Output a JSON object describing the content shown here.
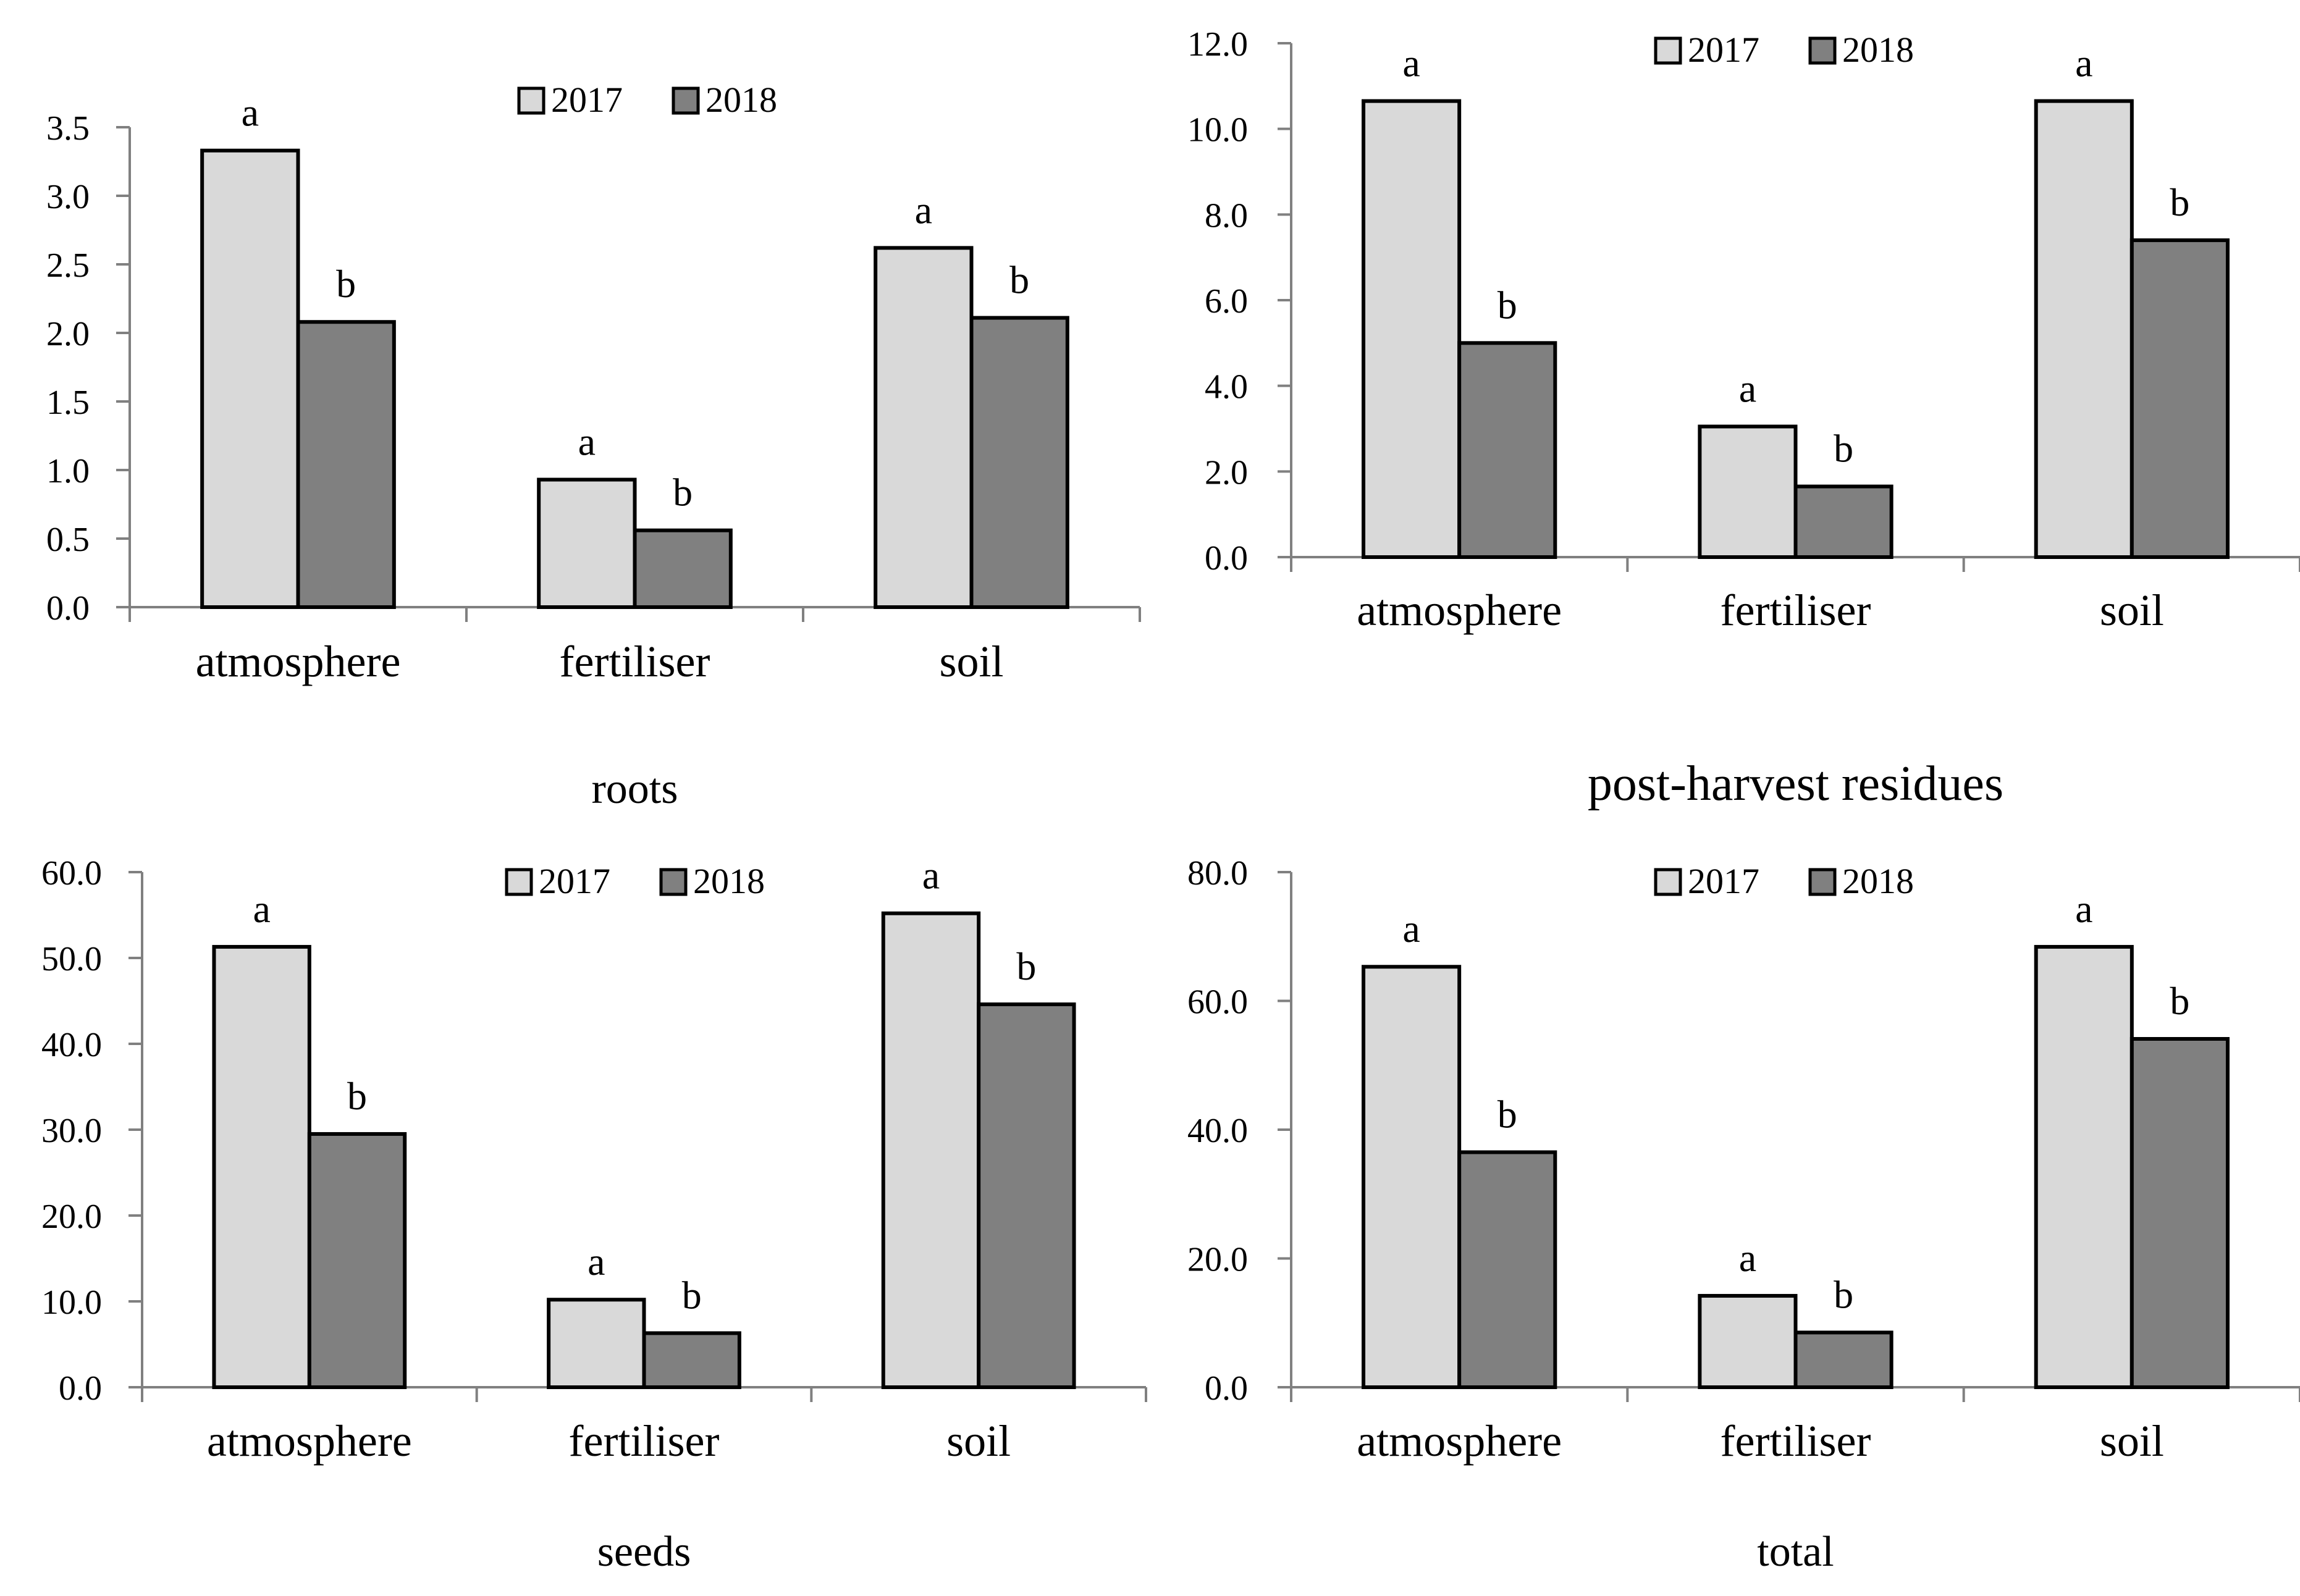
{
  "colors": {
    "y2017": "#d9d9d9",
    "y2018": "#808080",
    "stroke": "#000000",
    "axis": "#808080"
  },
  "chart_data": [
    {
      "type": "bar",
      "title": "roots",
      "categories": [
        "atmosphere",
        "fertiliser",
        "soil"
      ],
      "series": [
        {
          "name": "2017",
          "values": [
            3.33,
            0.93,
            2.62
          ],
          "letters": [
            "a",
            "a",
            "a"
          ]
        },
        {
          "name": "2018",
          "values": [
            2.08,
            0.56,
            2.11
          ],
          "letters": [
            "b",
            "b",
            "b"
          ]
        }
      ],
      "ylim": [
        0,
        3.5
      ],
      "ystep": 0.5,
      "ytick_labels": [
        "0.0",
        "0.5",
        "1.0",
        "1.5",
        "2.0",
        "2.5",
        "3.0",
        "3.5"
      ],
      "xlabel": "",
      "ylabel": "",
      "legend": "top-center",
      "grid": false
    },
    {
      "type": "bar",
      "title": "post-harvest residues",
      "categories": [
        "atmosphere",
        "fertiliser",
        "soil"
      ],
      "series": [
        {
          "name": "2017",
          "values": [
            10.65,
            3.05,
            10.65
          ],
          "letters": [
            "a",
            "a",
            "a"
          ]
        },
        {
          "name": "2018",
          "values": [
            5.0,
            1.65,
            7.4
          ],
          "letters": [
            "b",
            "b",
            "b"
          ]
        }
      ],
      "ylim": [
        0,
        12
      ],
      "ystep": 2,
      "ytick_labels": [
        "0.0",
        "2.0",
        "4.0",
        "6.0",
        "8.0",
        "10.0",
        "12.0"
      ],
      "xlabel": "",
      "ylabel": "",
      "legend": "top-center",
      "grid": false
    },
    {
      "type": "bar",
      "title": "seeds",
      "categories": [
        "atmosphere",
        "fertiliser",
        "soil"
      ],
      "series": [
        {
          "name": "2017",
          "values": [
            51.3,
            10.2,
            55.2
          ],
          "letters": [
            "a",
            "a",
            "a"
          ]
        },
        {
          "name": "2018",
          "values": [
            29.5,
            6.3,
            44.6
          ],
          "letters": [
            "b",
            "b",
            "b"
          ]
        }
      ],
      "ylim": [
        0,
        60
      ],
      "ystep": 10,
      "ytick_labels": [
        "0.0",
        "10.0",
        "20.0",
        "30.0",
        "40.0",
        "50.0",
        "60.0"
      ],
      "xlabel": "",
      "ylabel": "",
      "legend": "top-center",
      "grid": false
    },
    {
      "type": "bar",
      "title": "total",
      "categories": [
        "atmosphere",
        "fertiliser",
        "soil"
      ],
      "series": [
        {
          "name": "2017",
          "values": [
            65.3,
            14.2,
            68.4
          ],
          "letters": [
            "a",
            "a",
            "a"
          ]
        },
        {
          "name": "2018",
          "values": [
            36.5,
            8.5,
            54.1
          ],
          "letters": [
            "b",
            "b",
            "b"
          ]
        }
      ],
      "ylim": [
        0,
        80
      ],
      "ystep": 20,
      "ytick_labels": [
        "0.0",
        "20.0",
        "40.0",
        "60.0",
        "80.0"
      ],
      "xlabel": "",
      "ylabel": "",
      "legend": "top-center",
      "grid": false
    }
  ]
}
